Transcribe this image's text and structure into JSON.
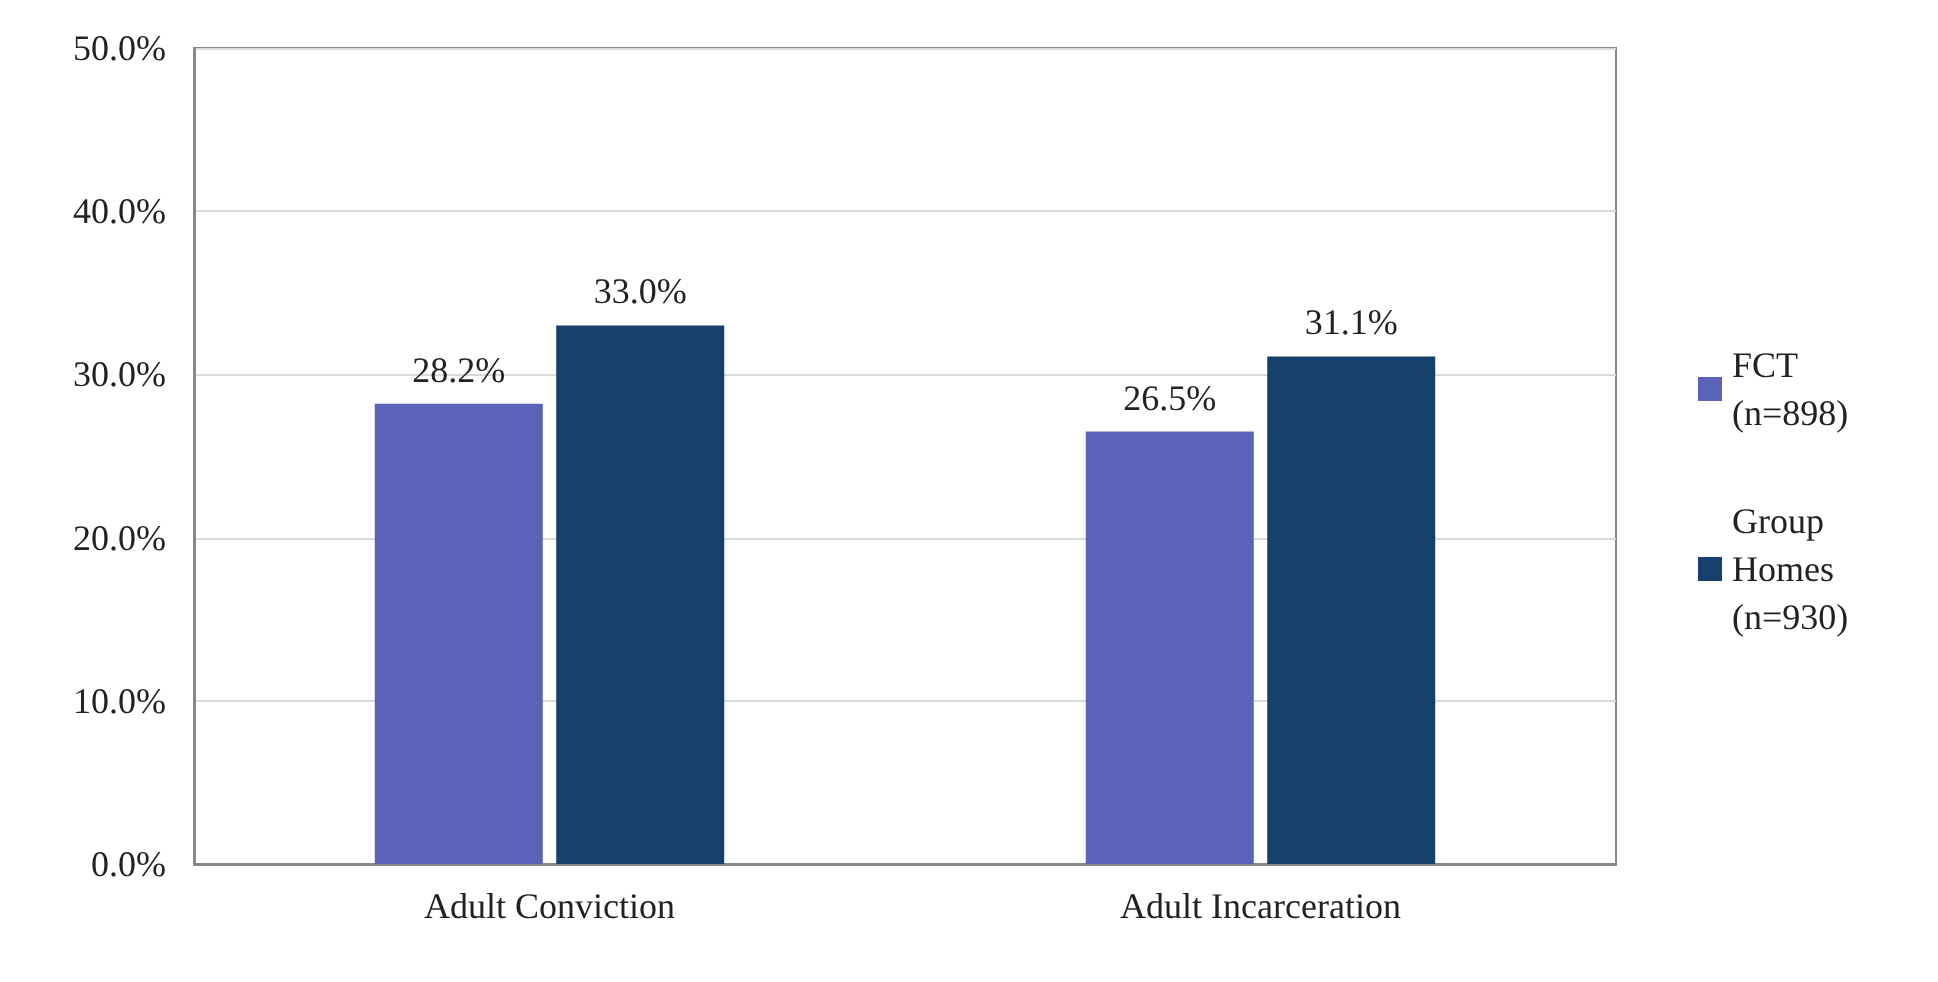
{
  "chart_data": {
    "type": "bar",
    "categories": [
      "Adult Conviction",
      "Adult Incarceration"
    ],
    "series": [
      {
        "name": "FCT (n=898)",
        "color": "#5b63b8",
        "values": [
          28.2,
          26.5
        ],
        "value_labels": [
          "28.2%",
          "26.5%"
        ]
      },
      {
        "name": "Group Homes (n=930)",
        "color": "#173f6b",
        "values": [
          33.0,
          31.1
        ],
        "value_labels": [
          "33.0%",
          "31.1%"
        ]
      }
    ],
    "ylim": [
      0,
      50
    ],
    "yticks": [
      {
        "value": 0,
        "label": "0.0%"
      },
      {
        "value": 10,
        "label": "10.0%"
      },
      {
        "value": 20,
        "label": "20.0%"
      },
      {
        "value": 30,
        "label": "30.0%"
      },
      {
        "value": 40,
        "label": "40.0%"
      },
      {
        "value": 50,
        "label": "50.0%"
      }
    ],
    "grid": "y",
    "legend": "right"
  }
}
